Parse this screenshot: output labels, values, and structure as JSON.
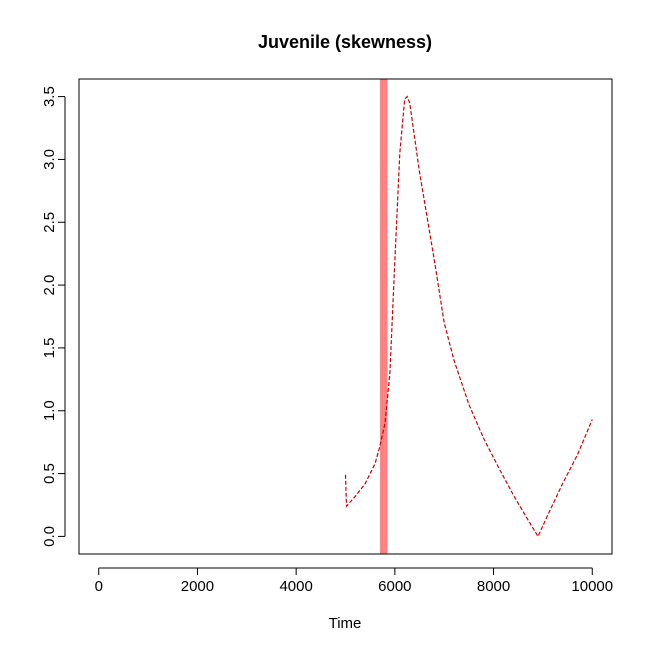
{
  "chart_data": {
    "type": "line",
    "title": "Juvenile (skewness)",
    "xlabel": "Time",
    "ylabel": "",
    "xlim": [
      -400,
      10400
    ],
    "ylim": [
      -0.14,
      3.64
    ],
    "x_ticks": [
      0,
      2000,
      4000,
      6000,
      8000,
      10000
    ],
    "x_tick_labels": [
      "0",
      "2000",
      "4000",
      "6000",
      "8000",
      "10000"
    ],
    "y_ticks": [
      0.0,
      0.5,
      1.0,
      1.5,
      2.0,
      2.5,
      3.0,
      3.5
    ],
    "y_tick_labels": [
      "0.0",
      "0.5",
      "1.0",
      "1.5",
      "2.0",
      "2.5",
      "3.0",
      "3.5"
    ],
    "grid": false,
    "legend": "none",
    "vertical_band": {
      "x_from": 5700,
      "x_to": 5850,
      "color": "#ff8080"
    },
    "series": [
      {
        "color": "#cc0000",
        "line_style": "dashed",
        "x": [
          5000,
          5020,
          5200,
          5400,
          5600,
          5700,
          5800,
          5900,
          6000,
          6100,
          6200,
          6250,
          6300,
          6500,
          6800,
          7000,
          7200,
          7500,
          7800,
          8100,
          8400,
          8700,
          8900,
          9100,
          9400,
          9700,
          10000
        ],
        "y": [
          0.49,
          0.24,
          0.32,
          0.42,
          0.58,
          0.72,
          0.9,
          1.3,
          2.2,
          3.05,
          3.48,
          3.5,
          3.45,
          2.9,
          2.2,
          1.7,
          1.4,
          1.05,
          0.78,
          0.55,
          0.33,
          0.13,
          0.0,
          0.17,
          0.42,
          0.65,
          0.93
        ]
      }
    ]
  }
}
